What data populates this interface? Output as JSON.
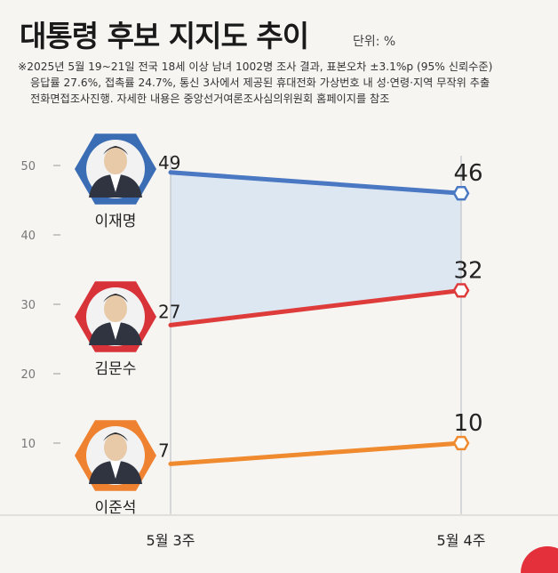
{
  "title": "대통령 후보 지지도 추이",
  "unit": "단위: %",
  "note_lines": [
    "※2025년 5월 19~21일 전국 18세 이상 남녀 1002명 조사 결과, 표본오차 ±3.1%p (95% 신뢰수준)",
    "응답률 27.6%, 접촉률 24.7%, 통신 3사에서 제공된 휴대전화 가상번호 내 성·연령·지역 무작위 추출",
    "전화면접조사진행. 자세한 내용은 중앙선거여론조사심의위원회 홈페이지를 참조"
  ],
  "colors": {
    "lee": "#4a78c2",
    "kim": "#de3b3b",
    "leejs": "#ef8a2e",
    "band": "#d9e6f2",
    "axis": "#999999"
  },
  "chart_data": {
    "type": "line",
    "categories": [
      "5월 3주",
      "5월 4주"
    ],
    "ylim": [
      0,
      55
    ],
    "yticks": [
      "10",
      "20",
      "30",
      "40",
      "50"
    ],
    "series": [
      {
        "name": "이재명",
        "values": [
          49,
          46
        ],
        "color": "#4a78c2",
        "badge": "#3b6db5",
        "labels": [
          "49",
          "46"
        ]
      },
      {
        "name": "김문수",
        "values": [
          27,
          32
        ],
        "color": "#de3b3b",
        "badge": "#d9333a",
        "labels": [
          "27",
          "32"
        ]
      },
      {
        "name": "이준석",
        "values": [
          7,
          10
        ],
        "color": "#ef8a2e",
        "badge": "#ee8230",
        "labels": [
          "7",
          "10"
        ]
      }
    ]
  }
}
